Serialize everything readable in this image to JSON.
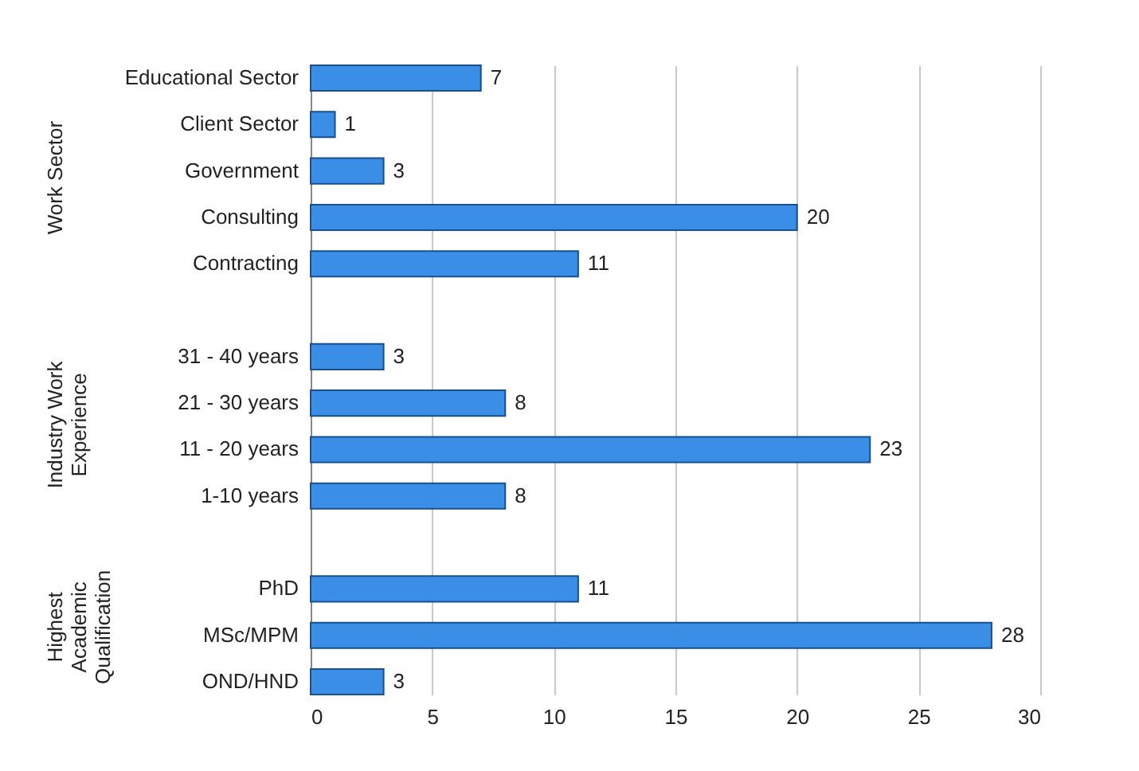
{
  "chart_data": {
    "type": "bar",
    "orientation": "horizontal",
    "categories": [
      "Educational Sector",
      "Client Sector",
      "Government",
      "Consulting",
      "Contracting",
      null,
      "31 - 40 years",
      "21 - 30 years",
      "11 - 20 years",
      "1-10 years",
      null,
      "PhD",
      "MSc/MPM",
      "OND/HND"
    ],
    "values": [
      7,
      1,
      3,
      20,
      11,
      null,
      3,
      8,
      23,
      8,
      null,
      11,
      28,
      3
    ],
    "color": "#3b8ee6",
    "xlim": [
      0,
      30
    ],
    "xticks": [
      0,
      5,
      10,
      15,
      20,
      25,
      30
    ],
    "grid": "x",
    "data_labels": true,
    "annotations": [
      "Work Sector",
      "Industry Work\nExperience",
      "Highest\nAcademic\nQualification"
    ]
  }
}
